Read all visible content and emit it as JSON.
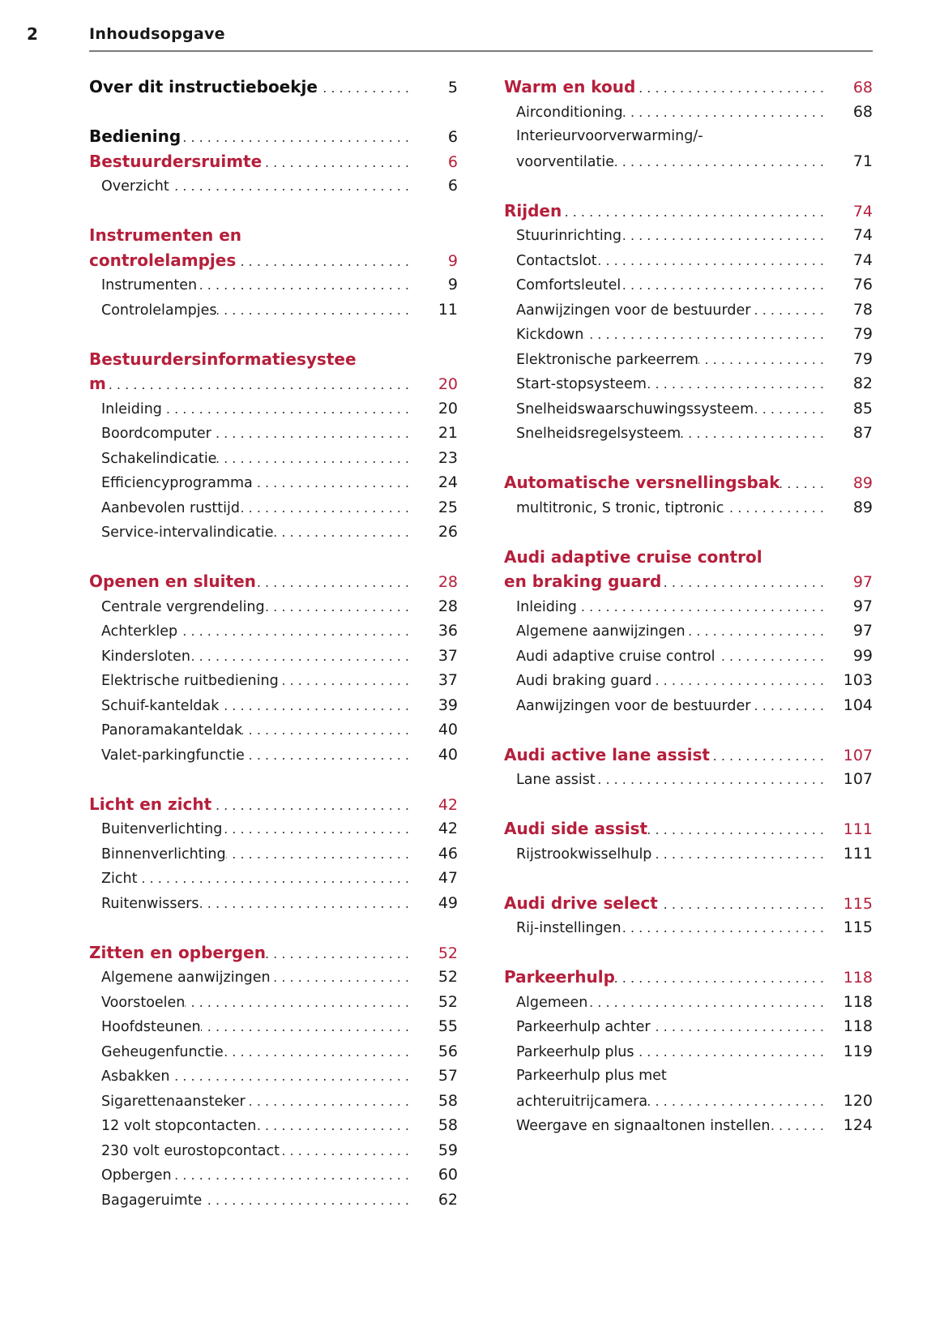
{
  "header": {
    "page_number": "2",
    "title": "Inhoudsopgave"
  },
  "colors": {
    "accent": "#b51f3b",
    "text": "#1a1a1a",
    "rule": "#7a7a7a"
  },
  "columns": [
    {
      "groups": [
        {
          "entries": [
            {
              "type": "chapter",
              "title_lines": [
                "Over dit instructieboekje"
              ],
              "page": "5"
            }
          ]
        },
        {
          "entries": [
            {
              "type": "chapter",
              "title_lines": [
                "Bediening"
              ],
              "page": "6"
            },
            {
              "type": "section",
              "title_lines": [
                "Bestuurdersruimte"
              ],
              "page": "6"
            },
            {
              "type": "item",
              "title_lines": [
                "Overzicht"
              ],
              "page": "6"
            }
          ]
        },
        {
          "entries": [
            {
              "type": "section",
              "title_lines": [
                "Instrumenten en",
                "controlelampjes"
              ],
              "page": "9"
            },
            {
              "type": "item",
              "title_lines": [
                "Instrumenten"
              ],
              "page": "9"
            },
            {
              "type": "item",
              "title_lines": [
                "Controlelampjes"
              ],
              "page": "11"
            }
          ]
        },
        {
          "entries": [
            {
              "type": "section",
              "title_lines": [
                "Bestuurdersinformatiesystee",
                "m"
              ],
              "page": "20"
            },
            {
              "type": "item",
              "title_lines": [
                "Inleiding"
              ],
              "page": "20"
            },
            {
              "type": "item",
              "title_lines": [
                "Boordcomputer"
              ],
              "page": "21"
            },
            {
              "type": "item",
              "title_lines": [
                "Schakelindicatie"
              ],
              "page": "23"
            },
            {
              "type": "item",
              "title_lines": [
                "Efficiencyprogramma"
              ],
              "page": "24"
            },
            {
              "type": "item",
              "title_lines": [
                "Aanbevolen rusttijd"
              ],
              "page": "25"
            },
            {
              "type": "item",
              "title_lines": [
                "Service-intervalindicatie"
              ],
              "page": "26"
            }
          ]
        },
        {
          "entries": [
            {
              "type": "section",
              "title_lines": [
                "Openen en sluiten"
              ],
              "page": "28"
            },
            {
              "type": "item",
              "title_lines": [
                "Centrale vergrendeling"
              ],
              "page": "28"
            },
            {
              "type": "item",
              "title_lines": [
                "Achterklep"
              ],
              "page": "36"
            },
            {
              "type": "item",
              "title_lines": [
                "Kindersloten"
              ],
              "page": "37"
            },
            {
              "type": "item",
              "title_lines": [
                "Elektrische ruitbediening"
              ],
              "page": "37"
            },
            {
              "type": "item",
              "title_lines": [
                "Schuif-kanteldak"
              ],
              "page": "39"
            },
            {
              "type": "item",
              "title_lines": [
                "Panoramakanteldak"
              ],
              "page": "40"
            },
            {
              "type": "item",
              "title_lines": [
                "Valet-parkingfunctie"
              ],
              "page": "40"
            }
          ]
        },
        {
          "entries": [
            {
              "type": "section",
              "title_lines": [
                "Licht en zicht"
              ],
              "page": "42"
            },
            {
              "type": "item",
              "title_lines": [
                "Buitenverlichting"
              ],
              "page": "42"
            },
            {
              "type": "item",
              "title_lines": [
                "Binnenverlichting"
              ],
              "page": "46"
            },
            {
              "type": "item",
              "title_lines": [
                "Zicht"
              ],
              "page": "47"
            },
            {
              "type": "item",
              "title_lines": [
                "Ruitenwissers"
              ],
              "page": "49"
            }
          ]
        },
        {
          "entries": [
            {
              "type": "section",
              "title_lines": [
                "Zitten en opbergen"
              ],
              "page": "52"
            },
            {
              "type": "item",
              "title_lines": [
                "Algemene aanwijzingen"
              ],
              "page": "52"
            },
            {
              "type": "item",
              "title_lines": [
                "Voorstoelen"
              ],
              "page": "52"
            },
            {
              "type": "item",
              "title_lines": [
                "Hoofdsteunen"
              ],
              "page": "55"
            },
            {
              "type": "item",
              "title_lines": [
                "Geheugenfunctie"
              ],
              "page": "56"
            },
            {
              "type": "item",
              "title_lines": [
                "Asbakken"
              ],
              "page": "57"
            },
            {
              "type": "item",
              "title_lines": [
                "Sigarettenaansteker"
              ],
              "page": "58"
            },
            {
              "type": "item",
              "title_lines": [
                "12 volt stopcontacten"
              ],
              "page": "58"
            },
            {
              "type": "item",
              "title_lines": [
                "230 volt eurostopcontact"
              ],
              "page": "59"
            },
            {
              "type": "item",
              "title_lines": [
                "Opbergen"
              ],
              "page": "60"
            },
            {
              "type": "item",
              "title_lines": [
                "Bagageruimte"
              ],
              "page": "62"
            }
          ]
        }
      ]
    },
    {
      "groups": [
        {
          "entries": [
            {
              "type": "section",
              "title_lines": [
                "Warm en koud"
              ],
              "page": "68"
            },
            {
              "type": "item",
              "title_lines": [
                "Airconditioning"
              ],
              "page": "68"
            },
            {
              "type": "item",
              "title_lines": [
                "Interieurvoorverwarming/-",
                "voorventilatie"
              ],
              "page": "71"
            }
          ]
        },
        {
          "entries": [
            {
              "type": "section",
              "title_lines": [
                "Rijden"
              ],
              "page": "74"
            },
            {
              "type": "item",
              "title_lines": [
                "Stuurinrichting"
              ],
              "page": "74"
            },
            {
              "type": "item",
              "title_lines": [
                "Contactslot"
              ],
              "page": "74"
            },
            {
              "type": "item",
              "title_lines": [
                "Comfortsleutel"
              ],
              "page": "76"
            },
            {
              "type": "item",
              "title_lines": [
                "Aanwijzingen voor de bestuurder"
              ],
              "page": "78"
            },
            {
              "type": "item",
              "title_lines": [
                "Kickdown"
              ],
              "page": "79"
            },
            {
              "type": "item",
              "title_lines": [
                "Elektronische parkeerrem"
              ],
              "page": "79"
            },
            {
              "type": "item",
              "title_lines": [
                "Start-stopsysteem"
              ],
              "page": "82"
            },
            {
              "type": "item",
              "title_lines": [
                "Snelheidswaarschuwingssysteem"
              ],
              "page": "85"
            },
            {
              "type": "item",
              "title_lines": [
                "Snelheidsregelsysteem"
              ],
              "page": "87"
            }
          ]
        },
        {
          "entries": [
            {
              "type": "section",
              "title_lines": [
                "Automatische versnellingsbak"
              ],
              "page": "89"
            },
            {
              "type": "item",
              "title_lines": [
                "multitronic, S tronic, tiptronic"
              ],
              "page": "89"
            }
          ]
        },
        {
          "entries": [
            {
              "type": "section",
              "title_lines": [
                "Audi adaptive cruise control",
                "en braking guard"
              ],
              "page": "97"
            },
            {
              "type": "item",
              "title_lines": [
                "Inleiding"
              ],
              "page": "97"
            },
            {
              "type": "item",
              "title_lines": [
                "Algemene aanwijzingen"
              ],
              "page": "97"
            },
            {
              "type": "item",
              "title_lines": [
                "Audi adaptive cruise control"
              ],
              "page": "99"
            },
            {
              "type": "item",
              "title_lines": [
                "Audi braking guard"
              ],
              "page": "103"
            },
            {
              "type": "item",
              "title_lines": [
                "Aanwijzingen voor de bestuurder"
              ],
              "page": "104"
            }
          ]
        },
        {
          "entries": [
            {
              "type": "section",
              "title_lines": [
                "Audi active lane assist"
              ],
              "page": "107"
            },
            {
              "type": "item",
              "title_lines": [
                "Lane assist"
              ],
              "page": "107"
            }
          ]
        },
        {
          "entries": [
            {
              "type": "section",
              "title_lines": [
                "Audi side assist"
              ],
              "page": "111"
            },
            {
              "type": "item",
              "title_lines": [
                "Rijstrookwisselhulp"
              ],
              "page": "111"
            }
          ]
        },
        {
          "entries": [
            {
              "type": "section",
              "title_lines": [
                "Audi drive select"
              ],
              "page": "115"
            },
            {
              "type": "item",
              "title_lines": [
                "Rij-instellingen"
              ],
              "page": "115"
            }
          ]
        },
        {
          "entries": [
            {
              "type": "section",
              "title_lines": [
                "Parkeerhulp"
              ],
              "page": "118"
            },
            {
              "type": "item",
              "title_lines": [
                "Algemeen"
              ],
              "page": "118"
            },
            {
              "type": "item",
              "title_lines": [
                "Parkeerhulp achter"
              ],
              "page": "118"
            },
            {
              "type": "item",
              "title_lines": [
                "Parkeerhulp plus"
              ],
              "page": "119"
            },
            {
              "type": "item",
              "title_lines": [
                "Parkeerhulp plus met",
                "achteruitrijcamera"
              ],
              "page": "120"
            },
            {
              "type": "item",
              "title_lines": [
                "Weergave en signaaltonen instellen"
              ],
              "page": "124"
            }
          ]
        }
      ]
    }
  ]
}
